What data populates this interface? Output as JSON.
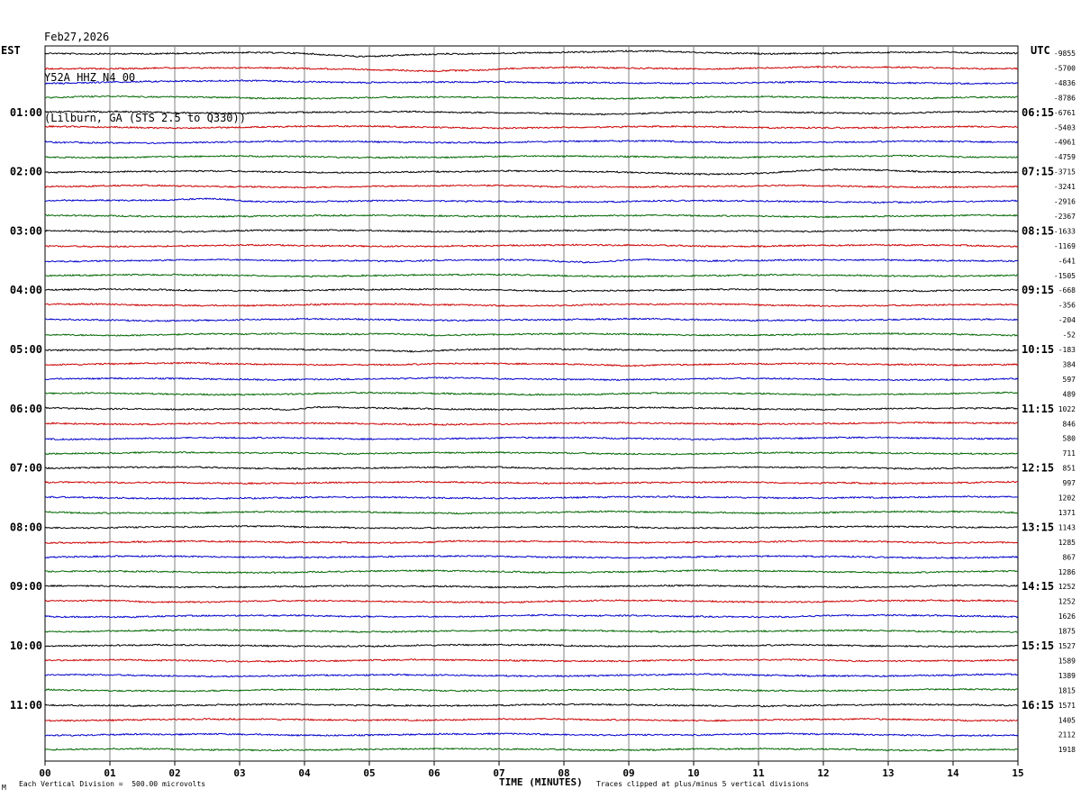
{
  "header": {
    "date": "Feb27,2026",
    "station": "Y52A HHZ N4 00",
    "location": "(Lilburn, GA (STS 2.5 to Q330))"
  },
  "axes": {
    "left_timezone": "EST",
    "right_timezone": "UTC",
    "xlabel": "TIME (MINUTES)"
  },
  "footer": {
    "scale_note": "Each Vertical Division =  500.00 microvolts",
    "clip_note": "Traces clipped at plus/minus 5 vertical divisions",
    "corner_mark": "M"
  },
  "colors": {
    "trace_cycle": [
      "#000000",
      "#cc0000",
      "#0000cc",
      "#006600"
    ],
    "grid": "#808080",
    "background": "#ffffff"
  },
  "chart_data": {
    "type": "line",
    "title": "Y52A HHZ N4 00 (Lilburn, GA (STS 2.5 to Q330))",
    "description_kind": "helicorder seismogram",
    "x_ticks": [
      "00",
      "01",
      "02",
      "03",
      "04",
      "05",
      "06",
      "07",
      "08",
      "09",
      "10",
      "11",
      "12",
      "13",
      "14",
      "15"
    ],
    "xlim": [
      0,
      15
    ],
    "x_unit": "minutes",
    "rows_per_hour": 4,
    "row_minutes": 15,
    "left_hour_labels": [
      "01:00",
      "02:00",
      "03:00",
      "04:00",
      "05:00",
      "06:00",
      "07:00",
      "08:00",
      "09:00",
      "10:00",
      "11:00"
    ],
    "right_hour_labels": [
      "06:15",
      "07:15",
      "08:15",
      "09:15",
      "10:15",
      "11:15",
      "12:15",
      "13:15",
      "14:15",
      "15:15",
      "16:15"
    ],
    "row_offsets": [
      -9855,
      -5700,
      -4836,
      -8786,
      -6761,
      -5403,
      -4961,
      -4759,
      -3715,
      -3241,
      -2916,
      -2367,
      -1633,
      -1169,
      -641,
      -1505,
      -668,
      -356,
      -204,
      -52,
      -183,
      384,
      597,
      489,
      1022,
      846,
      580,
      711,
      851,
      997,
      1202,
      1371,
      1143,
      1285,
      867,
      1286,
      1252,
      1252,
      1626,
      1875,
      1527,
      1589,
      1389,
      1815,
      1571,
      1405,
      2112,
      1918
    ],
    "row_offset_label_first": "-9855",
    "events": [
      {
        "row": 0,
        "minute": 4.9,
        "amp": 3,
        "width": 1.2
      },
      {
        "row": 0,
        "minute": 9.6,
        "amp": -2,
        "width": 1.5
      },
      {
        "row": 1,
        "minute": 6.3,
        "amp": 3,
        "width": 1.8
      },
      {
        "row": 2,
        "minute": 3.5,
        "amp": -2,
        "width": 2.5
      },
      {
        "row": 4,
        "minute": 9.0,
        "amp": 2,
        "width": 1.5
      },
      {
        "row": 8,
        "minute": 10.6,
        "amp": 2.5,
        "width": 1.5
      },
      {
        "row": 8,
        "minute": 12.5,
        "amp": -1.5,
        "width": 1.2
      },
      {
        "row": 10,
        "minute": 2.5,
        "amp": -3,
        "width": 0.8
      },
      {
        "row": 14,
        "minute": 8.3,
        "amp": 1.8,
        "width": 0.9
      },
      {
        "row": 14,
        "minute": 9.3,
        "amp": -1.5,
        "width": 0.8
      },
      {
        "row": 19,
        "minute": 5.4,
        "amp": -1.5,
        "width": 0.8
      },
      {
        "row": 20,
        "minute": 5.7,
        "amp": 1.2,
        "width": 0.6
      },
      {
        "row": 21,
        "minute": 9.0,
        "amp": 0.8,
        "width": 0.5
      },
      {
        "row": 24,
        "minute": 3.8,
        "amp": 1.5,
        "width": 0.3
      },
      {
        "row": 24,
        "minute": 4.3,
        "amp": -0.6,
        "width": 0.5
      },
      {
        "row": 29,
        "minute": 12.3,
        "amp": -0.8,
        "width": 0.5
      },
      {
        "row": 33,
        "minute": 6.4,
        "amp": -0.7,
        "width": 0.6
      },
      {
        "row": 37,
        "minute": 1.0,
        "amp": -1.0,
        "width": 0.6
      },
      {
        "row": 38,
        "minute": 8.2,
        "amp": 0.7,
        "width": 0.4
      },
      {
        "row": 46,
        "minute": 1.8,
        "amp": 0.7,
        "width": 0.5
      }
    ]
  }
}
